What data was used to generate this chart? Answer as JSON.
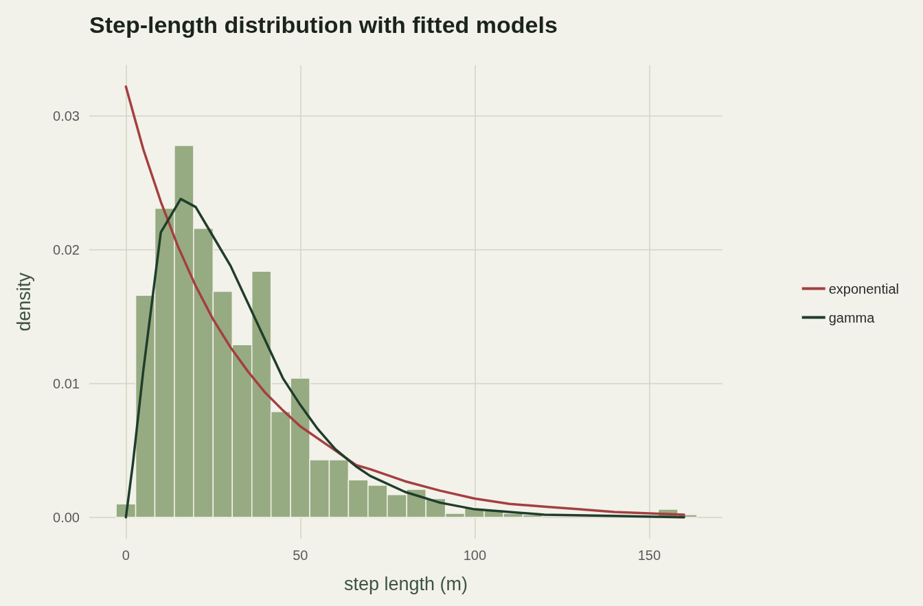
{
  "chart_data": {
    "type": "histogram",
    "title": "Step-length distribution with fitted models",
    "xlabel": "step length (m)",
    "ylabel": "density",
    "bins": [
      -2.8,
      2.8,
      8.3,
      13.9,
      19.4,
      25,
      30.5,
      36.1,
      41.6,
      47.2,
      52.7,
      58.3,
      63.8,
      69.4,
      74.9,
      80.5,
      86,
      91.6,
      97.1,
      102.7,
      108.2,
      113.8,
      119.3,
      152.6,
      158.2,
      163.7
    ],
    "values": [
      0.001,
      0.0166,
      0.0231,
      0.0278,
      0.0216,
      0.0169,
      0.0129,
      0.0184,
      0.0079,
      0.0104,
      0.0043,
      0.0043,
      0.0028,
      0.0024,
      0.0017,
      0.0021,
      0.0014,
      0.0003,
      0.0007,
      0.0005,
      0.0003,
      0.0002,
      0,
      0.0006,
      0.0002
    ],
    "color": "#97ab82",
    "series": [
      {
        "type": "line",
        "name": "exponential",
        "color": "#a43f3f",
        "x": [
          0,
          5,
          10,
          15,
          20,
          25,
          30,
          35,
          40,
          45,
          50,
          60,
          66,
          70,
          80,
          90,
          100,
          110,
          120,
          130,
          140,
          150,
          160
        ],
        "values": [
          0.0322,
          0.0275,
          0.0236,
          0.0202,
          0.0173,
          0.0148,
          0.0127,
          0.0109,
          0.0093,
          0.008,
          0.0068,
          0.005,
          0.0039,
          0.0036,
          0.0027,
          0.002,
          0.0014,
          0.001,
          0.0008,
          0.0006,
          0.0004,
          0.0003,
          0.0002
        ]
      },
      {
        "type": "line",
        "name": "gamma",
        "color": "#1f3d2b",
        "x": [
          0,
          2,
          5,
          10,
          15.7,
          20,
          25,
          30,
          40,
          45,
          50,
          55,
          60,
          66,
          70,
          80,
          90,
          100,
          110,
          120,
          140,
          160
        ],
        "values": [
          0,
          0.004,
          0.011,
          0.0213,
          0.0238,
          0.0232,
          0.021,
          0.0188,
          0.0132,
          0.0104,
          0.0084,
          0.0066,
          0.0051,
          0.0038,
          0.0031,
          0.0019,
          0.0011,
          0.0006,
          0.0004,
          0.0002,
          0.0001,
          0
        ]
      }
    ],
    "xlim": [
      -10.5,
      171
    ],
    "xticks": [
      0,
      50,
      100,
      150
    ],
    "ylim": [
      -0.0016,
      0.0338
    ],
    "yticks": [
      {
        "value": 0,
        "label": "0.00"
      },
      0.01,
      0.02,
      0.03
    ],
    "grid": true,
    "legend": "right",
    "marker": "none",
    "line_style": "solid"
  }
}
